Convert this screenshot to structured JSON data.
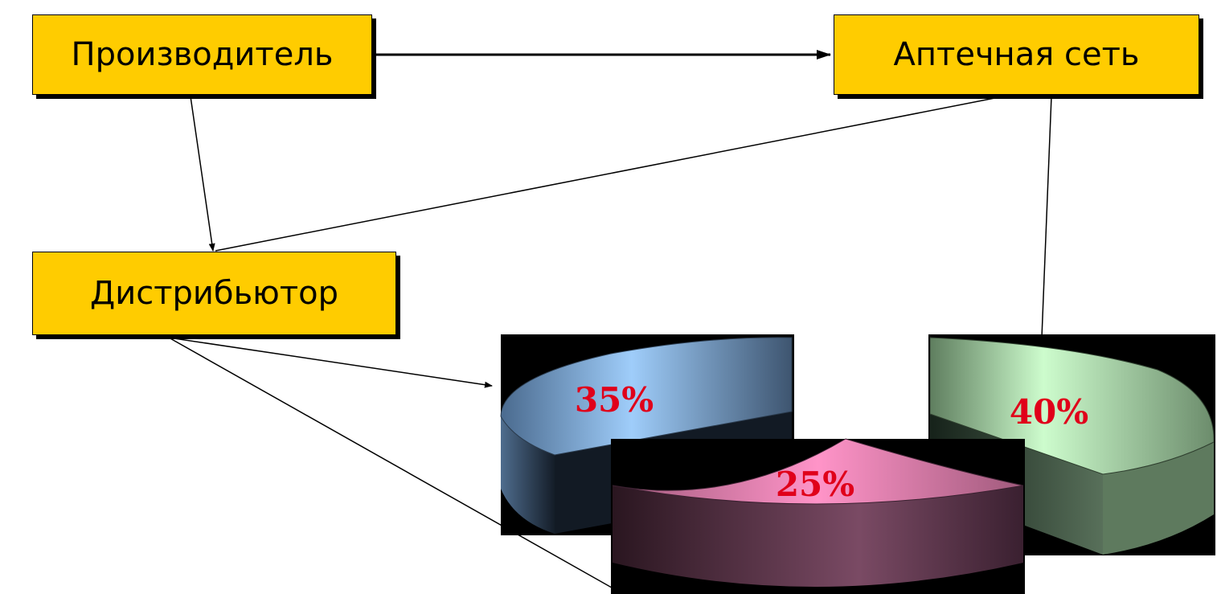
{
  "nodes": {
    "producer": {
      "label": "Производитель"
    },
    "pharmacy_chain": {
      "label": "Аптечная сеть"
    },
    "distributor": {
      "label": "Дистрибьютор"
    }
  },
  "chart_data": {
    "type": "pie",
    "categories": [
      "",
      "",
      ""
    ],
    "values": [
      35,
      25,
      40
    ],
    "data_labels": [
      "35%",
      "25%",
      "40%"
    ],
    "colors": [
      "#8cb8e8",
      "#e88ab4",
      "#c4ecc4"
    ],
    "label_color": "#e0001a"
  },
  "colors": {
    "box_fill": "#ffcc00",
    "line": "#000000"
  }
}
